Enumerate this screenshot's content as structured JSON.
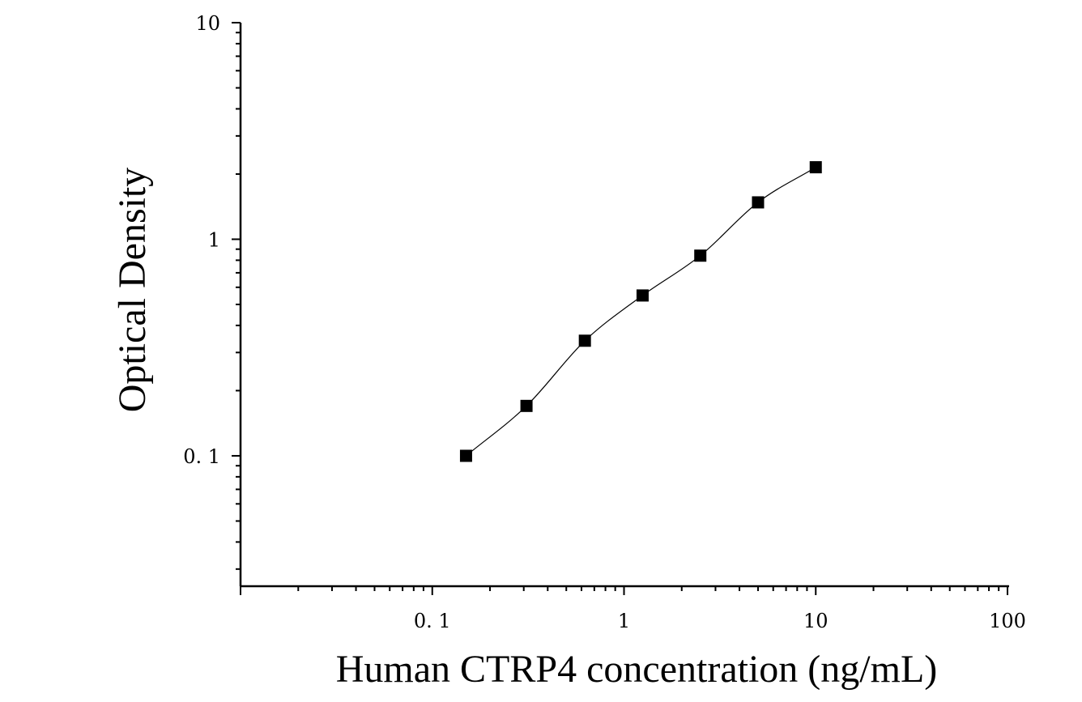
{
  "chart_data": {
    "type": "scatter",
    "xlabel": "Human CTRP4 concentration (ng/mL)",
    "ylabel": "Optical Density",
    "x_scale": "log",
    "y_scale": "log",
    "xlim": [
      0.01,
      100
    ],
    "ylim": [
      0.025,
      10
    ],
    "x_ticks": [
      {
        "value": 0.1,
        "label": "0. 1"
      },
      {
        "value": 1,
        "label": "1"
      },
      {
        "value": 10,
        "label": "10"
      },
      {
        "value": 100,
        "label": "100"
      }
    ],
    "y_ticks": [
      {
        "value": 0.1,
        "label": "0. 1"
      },
      {
        "value": 1,
        "label": "1"
      },
      {
        "value": 10,
        "label": "10"
      }
    ],
    "grid": false,
    "legend": "none",
    "marker": "square",
    "fit_line": true,
    "points": [
      {
        "x": 0.15,
        "y": 0.1
      },
      {
        "x": 0.31,
        "y": 0.17
      },
      {
        "x": 0.625,
        "y": 0.34
      },
      {
        "x": 1.25,
        "y": 0.55
      },
      {
        "x": 2.5,
        "y": 0.84
      },
      {
        "x": 5,
        "y": 1.48
      },
      {
        "x": 10,
        "y": 2.15
      }
    ]
  }
}
